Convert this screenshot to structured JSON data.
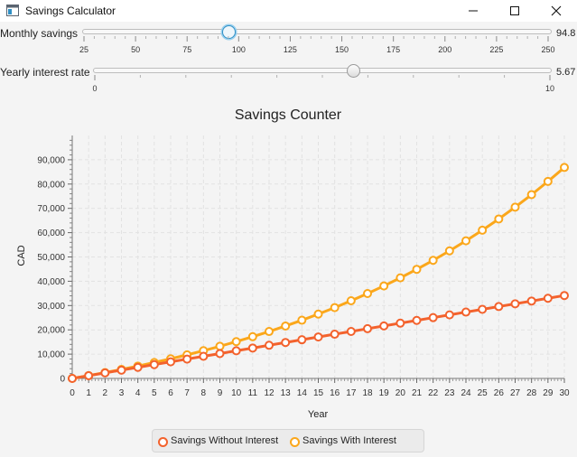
{
  "window": {
    "title": "Savings Calculator",
    "icon": "app-window-icon",
    "controls": [
      "minimize-icon",
      "maximize-icon",
      "close-icon"
    ]
  },
  "monthly_slider": {
    "label": "Monthly savings",
    "value_text": "94.8",
    "min": 25,
    "max": 250,
    "value": 94.8,
    "tick_labels": [
      "25",
      "50",
      "75",
      "100",
      "125",
      "150",
      "175",
      "200",
      "225",
      "250"
    ]
  },
  "interest_slider": {
    "label": "Yearly interest rate",
    "value_text": "5.67",
    "min": 0,
    "max": 10,
    "value": 5.67,
    "tick_labels": [
      "0",
      "10"
    ]
  },
  "colors": {
    "series_without": "#f3622d",
    "series_with": "#fba71b",
    "chart_bg": "#f4f4f4",
    "grid": "#e2e2e2"
  },
  "chart_data": {
    "type": "line",
    "title": "Savings Counter",
    "xlabel": "Year",
    "ylabel": "CAD",
    "xlim": [
      0,
      30
    ],
    "ylim": [
      0,
      100000
    ],
    "y_ticks": [
      "0",
      "10,000",
      "20,000",
      "30,000",
      "40,000",
      "50,000",
      "60,000",
      "70,000",
      "80,000",
      "90,000"
    ],
    "x_ticks": [
      "0",
      "1",
      "2",
      "3",
      "4",
      "5",
      "6",
      "7",
      "8",
      "9",
      "10",
      "11",
      "12",
      "13",
      "14",
      "15",
      "16",
      "17",
      "18",
      "19",
      "20",
      "21",
      "22",
      "23",
      "24",
      "25",
      "26",
      "27",
      "28",
      "29",
      "30"
    ],
    "grid": true,
    "legend_position": "bottom",
    "x": [
      0,
      1,
      2,
      3,
      4,
      5,
      6,
      7,
      8,
      9,
      10,
      11,
      12,
      13,
      14,
      15,
      16,
      17,
      18,
      19,
      20,
      21,
      22,
      23,
      24,
      25,
      26,
      27,
      28,
      29,
      30
    ],
    "series": [
      {
        "name": "Savings Without Interest",
        "values": [
          0,
          1138,
          2275,
          3413,
          4550,
          5688,
          6826,
          7963,
          9101,
          10238,
          11376,
          12514,
          13651,
          14789,
          15926,
          17064,
          18202,
          19339,
          20477,
          21614,
          22752,
          23890,
          25027,
          26165,
          27302,
          28440,
          29578,
          30715,
          31853,
          32990,
          34128
        ]
      },
      {
        "name": "Savings With Interest",
        "values": [
          0,
          1169,
          2404,
          3709,
          5087,
          6543,
          8082,
          9707,
          11424,
          13238,
          15154,
          17178,
          19317,
          21576,
          23963,
          26484,
          29148,
          31962,
          34935,
          38076,
          41394,
          44899,
          48602,
          52514,
          56647,
          61013,
          65625,
          70498,
          75646,
          81084,
          86829
        ]
      }
    ]
  }
}
